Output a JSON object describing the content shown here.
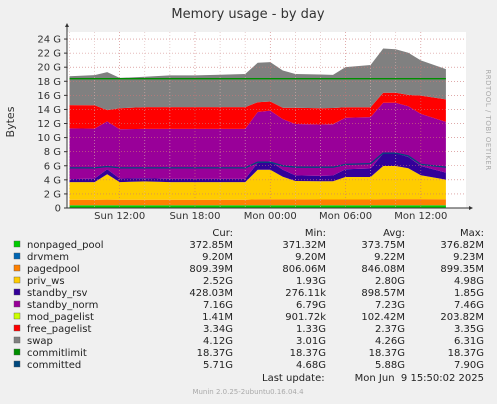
{
  "chart_data": {
    "type": "area",
    "title": "Memory usage - by day",
    "ylabel": "Bytes",
    "xlabel": "",
    "side_label": "RRDTOOL / TOBI OETIKER",
    "ylim": [
      0,
      25
    ],
    "yunit": "G",
    "y_ticks": [
      {
        "label": "0",
        "value": 0
      },
      {
        "label": "2 G",
        "value": 2
      },
      {
        "label": "4 G",
        "value": 4
      },
      {
        "label": "6 G",
        "value": 6
      },
      {
        "label": "8 G",
        "value": 8
      },
      {
        "label": "10 G",
        "value": 10
      },
      {
        "label": "12 G",
        "value": 12
      },
      {
        "label": "14 G",
        "value": 14
      },
      {
        "label": "16 G",
        "value": 16
      },
      {
        "label": "18 G",
        "value": 18
      },
      {
        "label": "20 G",
        "value": 20
      },
      {
        "label": "22 G",
        "value": 22
      },
      {
        "label": "24 G",
        "value": 24
      }
    ],
    "x_range_hours": [
      0,
      28
    ],
    "x_ticks": [
      {
        "label": "Sun 12:00",
        "hour": 4
      },
      {
        "label": "Sun 18:00",
        "hour": 10
      },
      {
        "label": "Mon 00:00",
        "hour": 16
      },
      {
        "label": "Mon 06:00",
        "hour": 22
      },
      {
        "label": "Mon 12:00",
        "hour": 28
      }
    ],
    "x_hours": [
      0,
      2,
      3,
      4,
      6,
      8,
      10,
      12,
      14,
      15,
      16,
      17,
      18,
      20,
      21,
      22,
      24,
      25,
      26,
      27,
      28,
      30
    ],
    "grid": true,
    "series": [
      {
        "name": "nonpaged_pool",
        "color": "#00cc00",
        "values": [
          0.37,
          0.37,
          0.37,
          0.37,
          0.37,
          0.37,
          0.37,
          0.37,
          0.37,
          0.37,
          0.37,
          0.37,
          0.37,
          0.37,
          0.37,
          0.37,
          0.37,
          0.37,
          0.37,
          0.37,
          0.37,
          0.37
        ]
      },
      {
        "name": "drvmem",
        "color": "#0066b3",
        "values": [
          0.01,
          0.01,
          0.01,
          0.01,
          0.01,
          0.01,
          0.01,
          0.01,
          0.01,
          0.01,
          0.01,
          0.01,
          0.01,
          0.01,
          0.01,
          0.01,
          0.01,
          0.01,
          0.01,
          0.01,
          0.01,
          0.01
        ]
      },
      {
        "name": "pagedpool",
        "color": "#ff8000",
        "values": [
          0.8,
          0.8,
          0.82,
          0.8,
          0.8,
          0.8,
          0.8,
          0.8,
          0.8,
          0.85,
          0.85,
          0.85,
          0.85,
          0.83,
          0.83,
          0.83,
          0.83,
          0.88,
          0.88,
          0.88,
          0.88,
          0.85
        ]
      },
      {
        "name": "priv_ws",
        "color": "#ffcc00",
        "values": [
          2.5,
          2.5,
          3.6,
          2.5,
          2.6,
          2.5,
          2.5,
          2.5,
          2.5,
          4.2,
          4.2,
          3.2,
          2.6,
          2.6,
          2.6,
          3.2,
          3.2,
          4.7,
          4.7,
          4.4,
          3.4,
          2.8
        ]
      },
      {
        "name": "standby_rsv",
        "color": "#330099",
        "values": [
          0.43,
          0.5,
          0.7,
          0.5,
          0.45,
          0.45,
          0.45,
          0.45,
          0.45,
          1.0,
          1.2,
          1.0,
          0.8,
          0.75,
          0.8,
          1.1,
          1.2,
          1.8,
          1.8,
          1.6,
          1.3,
          1.0
        ]
      },
      {
        "name": "standby_norm",
        "color": "#990099",
        "values": [
          7.2,
          7.1,
          6.8,
          7.0,
          7.0,
          7.1,
          7.1,
          7.1,
          7.1,
          7.2,
          7.2,
          7.2,
          7.3,
          7.3,
          7.3,
          7.3,
          7.3,
          7.2,
          7.2,
          7.2,
          7.4,
          7.2
        ]
      },
      {
        "name": "mod_pagelist",
        "color": "#ccff00",
        "values": [
          0.001,
          0.001,
          0.001,
          0.001,
          0.001,
          0.001,
          0.001,
          0.001,
          0.001,
          0.001,
          0.001,
          0.001,
          0.001,
          0.001,
          0.001,
          0.001,
          0.001,
          0.001,
          0.001,
          0.001,
          0.001,
          0.001
        ]
      },
      {
        "name": "free_pagelist",
        "color": "#ff0000",
        "values": [
          3.3,
          3.3,
          1.6,
          3.0,
          3.1,
          3.1,
          3.1,
          3.1,
          3.1,
          1.4,
          1.3,
          1.6,
          2.3,
          2.3,
          2.3,
          1.5,
          1.4,
          1.4,
          1.4,
          1.6,
          2.6,
          3.2
        ]
      },
      {
        "name": "swap",
        "color": "#808080",
        "values": [
          4.1,
          4.3,
          5.4,
          4.3,
          4.3,
          4.5,
          4.5,
          4.6,
          4.7,
          5.6,
          5.6,
          5.3,
          4.8,
          4.8,
          4.7,
          5.7,
          6.0,
          6.3,
          6.2,
          6.0,
          5.0,
          4.3
        ]
      }
    ],
    "line_series": [
      {
        "name": "commitlimit",
        "color": "#008f00",
        "values": [
          18.37,
          18.37,
          18.37,
          18.37,
          18.37,
          18.37,
          18.37,
          18.37,
          18.37,
          18.37,
          18.37,
          18.37,
          18.37,
          18.37,
          18.37,
          18.37,
          18.37,
          18.37,
          18.37,
          18.37,
          18.37,
          18.37
        ]
      },
      {
        "name": "committed",
        "color": "#00487d",
        "values": [
          5.7,
          5.7,
          5.9,
          5.7,
          5.7,
          5.7,
          5.7,
          5.7,
          5.7,
          6.5,
          6.5,
          6.0,
          5.8,
          5.8,
          5.8,
          6.2,
          6.3,
          7.8,
          7.8,
          7.4,
          6.2,
          5.8
        ]
      }
    ],
    "legend_headers": {
      "cur": "Cur:",
      "min": "Min:",
      "avg": "Avg:",
      "max": "Max:"
    },
    "legend_rows": [
      {
        "name": "nonpaged_pool",
        "color": "#00cc00",
        "cur": "372.85M",
        "min": "371.32M",
        "avg": "373.75M",
        "max": "376.82M"
      },
      {
        "name": "drvmem",
        "color": "#0066b3",
        "cur": "9.20M",
        "min": "9.20M",
        "avg": "9.22M",
        "max": "9.23M"
      },
      {
        "name": "pagedpool",
        "color": "#ff8000",
        "cur": "809.39M",
        "min": "806.06M",
        "avg": "846.08M",
        "max": "899.35M"
      },
      {
        "name": "priv_ws",
        "color": "#ffcc00",
        "cur": "2.52G",
        "min": "1.93G",
        "avg": "2.80G",
        "max": "4.98G"
      },
      {
        "name": "standby_rsv",
        "color": "#330099",
        "cur": "428.03M",
        "min": "276.11k",
        "avg": "898.57M",
        "max": "1.85G"
      },
      {
        "name": "standby_norm",
        "color": "#990099",
        "cur": "7.16G",
        "min": "6.79G",
        "avg": "7.23G",
        "max": "7.46G"
      },
      {
        "name": "mod_pagelist",
        "color": "#ccff00",
        "cur": "1.41M",
        "min": "901.72k",
        "avg": "102.42M",
        "max": "203.82M"
      },
      {
        "name": "free_pagelist",
        "color": "#ff0000",
        "cur": "3.34G",
        "min": "1.33G",
        "avg": "2.37G",
        "max": "3.35G"
      },
      {
        "name": "swap",
        "color": "#808080",
        "cur": "4.12G",
        "min": "3.01G",
        "avg": "4.26G",
        "max": "6.31G"
      },
      {
        "name": "commitlimit",
        "color": "#008f00",
        "cur": "18.37G",
        "min": "18.37G",
        "avg": "18.37G",
        "max": "18.37G"
      },
      {
        "name": "committed",
        "color": "#00487d",
        "cur": "5.71G",
        "min": "4.68G",
        "avg": "5.88G",
        "max": "7.90G"
      }
    ],
    "last_update_label": "Last update:",
    "last_update": "Mon Jun  9 15:50:02 2025",
    "footer": "Munin 2.0.25-2ubuntu0.16.04.4"
  }
}
